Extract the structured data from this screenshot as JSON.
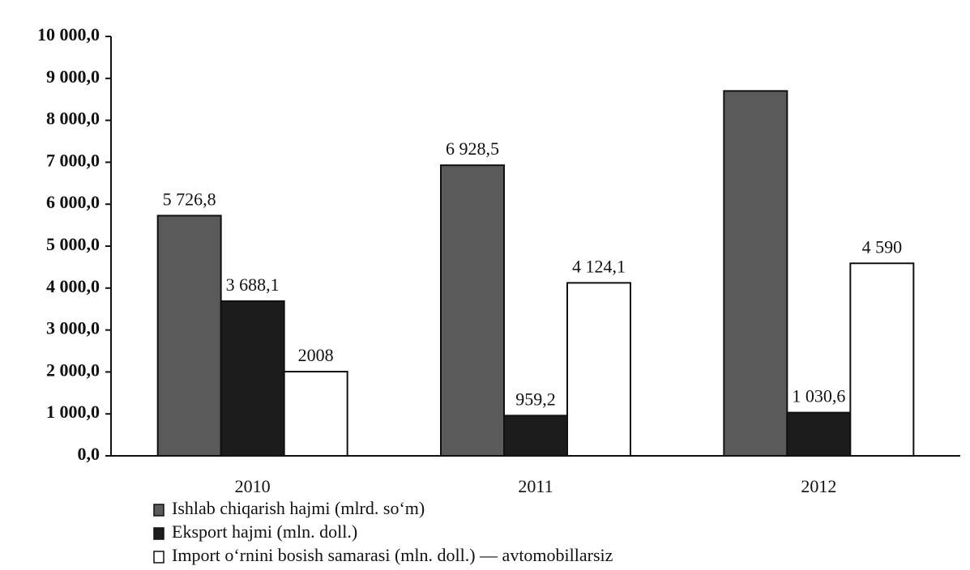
{
  "chart_data": {
    "type": "bar",
    "categories": [
      "2010",
      "2011",
      "2012"
    ],
    "series": [
      {
        "name": "Ishlab chiqarish hajmi (mlrd. so‘m)",
        "color": "#5a5a5a",
        "values": [
          5726.8,
          6928.5,
          8700
        ],
        "value_labels": [
          "5 726,8",
          "6 928,5",
          null
        ]
      },
      {
        "name": "Eksport hajmi (mln. doll.)",
        "color": "#1c1c1c",
        "values": [
          3688.1,
          959.2,
          1030.6
        ],
        "value_labels": [
          "3 688,1",
          "959,2",
          "1 030,6"
        ]
      },
      {
        "name": "Import o‘rnini bosish samarasi (mln. doll.) — avtomobillarsiz",
        "color": "#ffffff",
        "values": [
          2008,
          4124.1,
          4590
        ],
        "value_labels": [
          "2008",
          "4 124,1",
          "4 590"
        ]
      }
    ],
    "ylim": [
      0,
      10000
    ],
    "yticks": [
      {
        "value": 0,
        "label": "0,0"
      },
      {
        "value": 1000,
        "label": "1 000,0"
      },
      {
        "value": 2000,
        "label": "2 000,0"
      },
      {
        "value": 3000,
        "label": "3 000,0"
      },
      {
        "value": 4000,
        "label": "4 000,0"
      },
      {
        "value": 5000,
        "label": "5 000,0"
      },
      {
        "value": 6000,
        "label": "6 000,0"
      },
      {
        "value": 7000,
        "label": "7 000,0"
      },
      {
        "value": 8000,
        "label": "8 000,0"
      },
      {
        "value": 9000,
        "label": "9 000,0"
      },
      {
        "value": 10000,
        "label": "10 000,0"
      }
    ],
    "grid": false,
    "legend": "bottom"
  }
}
